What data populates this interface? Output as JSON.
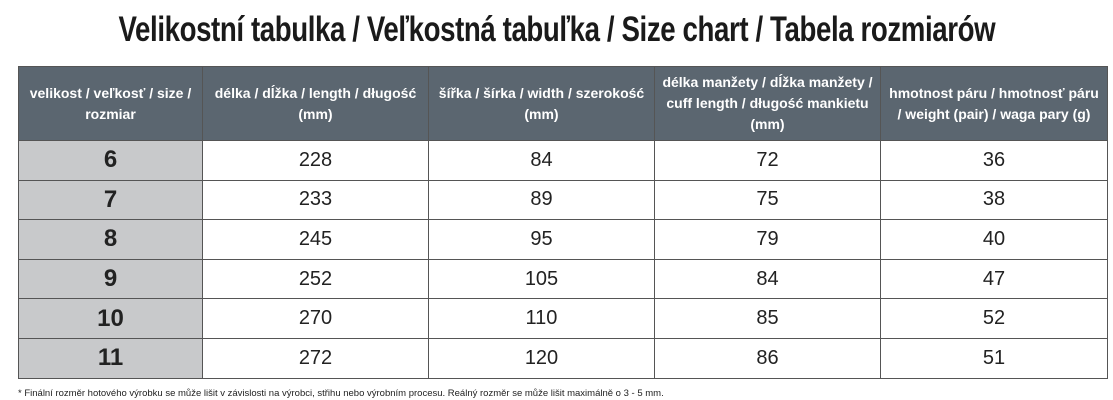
{
  "title": "Velikostní tabulka / Veľkostná tabuľka / Size chart / Tabela rozmiarów",
  "table": {
    "header": [
      "velikost / veľkosť / size / rozmiar",
      "délka / dĺžka / length / długość (mm)",
      "šířka / šírka / width / szerokość (mm)",
      "délka manžety / dĺžka manžety / cuff length / długość mankietu (mm)",
      "hmotnost páru / hmotnosť páru / weight (pair) / waga pary (g)"
    ],
    "rows": [
      [
        6,
        228,
        84,
        72,
        36
      ],
      [
        7,
        233,
        89,
        75,
        38
      ],
      [
        8,
        245,
        95,
        79,
        40
      ],
      [
        9,
        252,
        105,
        84,
        47
      ],
      [
        10,
        270,
        110,
        85,
        52
      ],
      [
        11,
        272,
        120,
        86,
        51
      ]
    ]
  },
  "footnote": "* Finální rozměr hotového výrobku se může lišit v závislosti na výrobci, střihu nebo výrobním procesu. Reálný rozměr se může lišit maximálně o 3 - 5 mm."
}
